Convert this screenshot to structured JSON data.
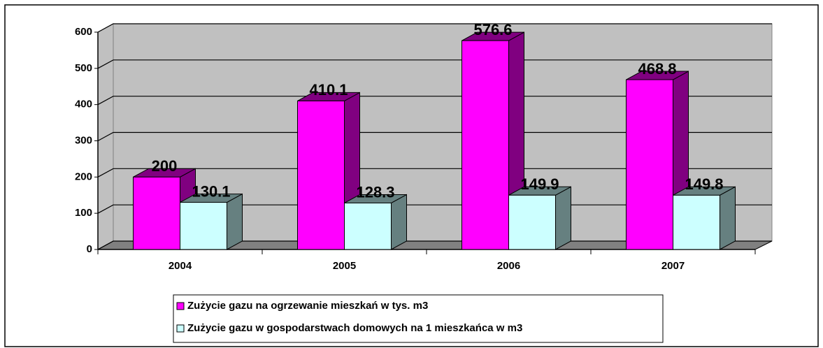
{
  "chart_data": {
    "type": "bar3d",
    "categories": [
      "2004",
      "2005",
      "2006",
      "2007"
    ],
    "series": [
      {
        "name": "Zużycie gazu na ogrzewanie mieszkań w tys. m3",
        "color": "#ff00ff",
        "values": [
          200,
          410.1,
          576.6,
          468.8
        ]
      },
      {
        "name": "Zużycie gazu w gospodarstwach domowych na 1 mieszkańca w m3",
        "color": "#ccffff",
        "values": [
          130.1,
          128.3,
          149.9,
          149.8
        ]
      }
    ],
    "ylim": [
      0,
      600
    ],
    "yticks": [
      0,
      100,
      200,
      300,
      400,
      500,
      600
    ],
    "grid": true
  }
}
